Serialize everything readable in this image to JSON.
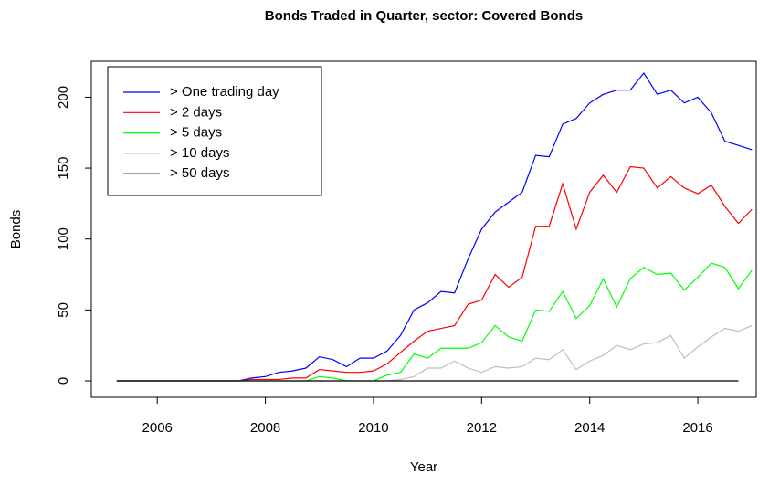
{
  "chart_data": {
    "type": "line",
    "title": "Bonds Traded in Quarter, sector: Covered Bonds",
    "x_label": "Year",
    "y_label": "Bonds",
    "x": [
      2005.25,
      2005.5,
      2005.75,
      2006,
      2006.25,
      2006.5,
      2006.75,
      2007,
      2007.25,
      2007.5,
      2007.75,
      2008,
      2008.25,
      2008.5,
      2008.75,
      2009,
      2009.25,
      2009.5,
      2009.75,
      2010,
      2010.25,
      2010.5,
      2010.75,
      2011,
      2011.25,
      2011.5,
      2011.75,
      2012,
      2012.25,
      2012.5,
      2012.75,
      2013,
      2013.25,
      2013.5,
      2013.75,
      2014,
      2014.25,
      2014.5,
      2014.75,
      2015,
      2015.25,
      2015.5,
      2015.75,
      2016,
      2016.25,
      2016.5,
      2016.75,
      2017
    ],
    "series": [
      {
        "name": "> One trading day",
        "color": "#0000ff",
        "values": [
          0,
          0,
          0,
          0,
          0,
          0,
          0,
          0,
          0,
          0,
          2,
          3,
          6,
          7,
          9,
          17,
          15,
          10,
          16,
          16,
          21,
          32,
          50,
          55,
          63,
          62,
          86,
          107,
          119,
          126,
          133,
          159,
          158,
          181,
          185,
          196,
          202,
          205,
          205,
          217,
          202,
          205,
          196,
          200,
          189,
          169,
          166,
          163
        ]
      },
      {
        "name": "> 2 days",
        "color": "#ff0000",
        "values": [
          0,
          0,
          0,
          0,
          0,
          0,
          0,
          0,
          0,
          0,
          1,
          1,
          1,
          2,
          2,
          8,
          7,
          6,
          6,
          7,
          12,
          20,
          28,
          35,
          37,
          39,
          54,
          57,
          75,
          66,
          73,
          109,
          109,
          139,
          107,
          133,
          145,
          133,
          151,
          150,
          136,
          144,
          136,
          132,
          138,
          123,
          111,
          121
        ]
      },
      {
        "name": "> 5 days",
        "color": "#00ff00",
        "values": [
          0,
          0,
          0,
          0,
          0,
          0,
          0,
          0,
          0,
          0,
          0,
          0,
          0,
          0,
          0,
          3,
          2,
          0,
          0,
          0,
          4,
          6,
          19,
          16,
          23,
          23,
          23,
          27,
          39,
          31,
          28,
          50,
          49,
          63,
          44,
          53,
          72,
          52,
          72,
          80,
          75,
          76,
          64,
          73,
          83,
          80,
          65,
          78
        ]
      },
      {
        "name": "> 10 days",
        "color": "#bebebe",
        "values": [
          0,
          0,
          0,
          0,
          0,
          0,
          0,
          0,
          0,
          0,
          0,
          0,
          0,
          0,
          0,
          0,
          0,
          0,
          0,
          0,
          0,
          1,
          3,
          9,
          9,
          14,
          9,
          6,
          10,
          9,
          10,
          16,
          15,
          22,
          8,
          14,
          18,
          25,
          22,
          26,
          27,
          32,
          16,
          24,
          31,
          37,
          35,
          39
        ]
      },
      {
        "name": "> 50 days",
        "color": "#000000",
        "values": [
          0,
          0,
          0,
          0,
          0,
          0,
          0,
          0,
          0,
          0,
          0,
          0,
          0,
          0,
          0,
          0,
          0,
          0,
          0,
          0,
          0,
          0,
          0,
          0,
          0,
          0,
          0,
          0,
          0,
          0,
          0,
          0,
          0,
          0,
          0,
          0,
          0,
          0,
          0,
          0,
          0,
          0,
          0,
          0,
          0,
          0,
          0,
          null
        ]
      }
    ],
    "xlim": [
      2004.78,
      2017.08
    ],
    "xticks": [
      2006,
      2008,
      2010,
      2012,
      2014,
      2016
    ],
    "ylim": [
      -11.6,
      225.4
    ],
    "yticks": [
      0,
      50,
      100,
      150,
      200
    ],
    "legend": "top-left"
  }
}
